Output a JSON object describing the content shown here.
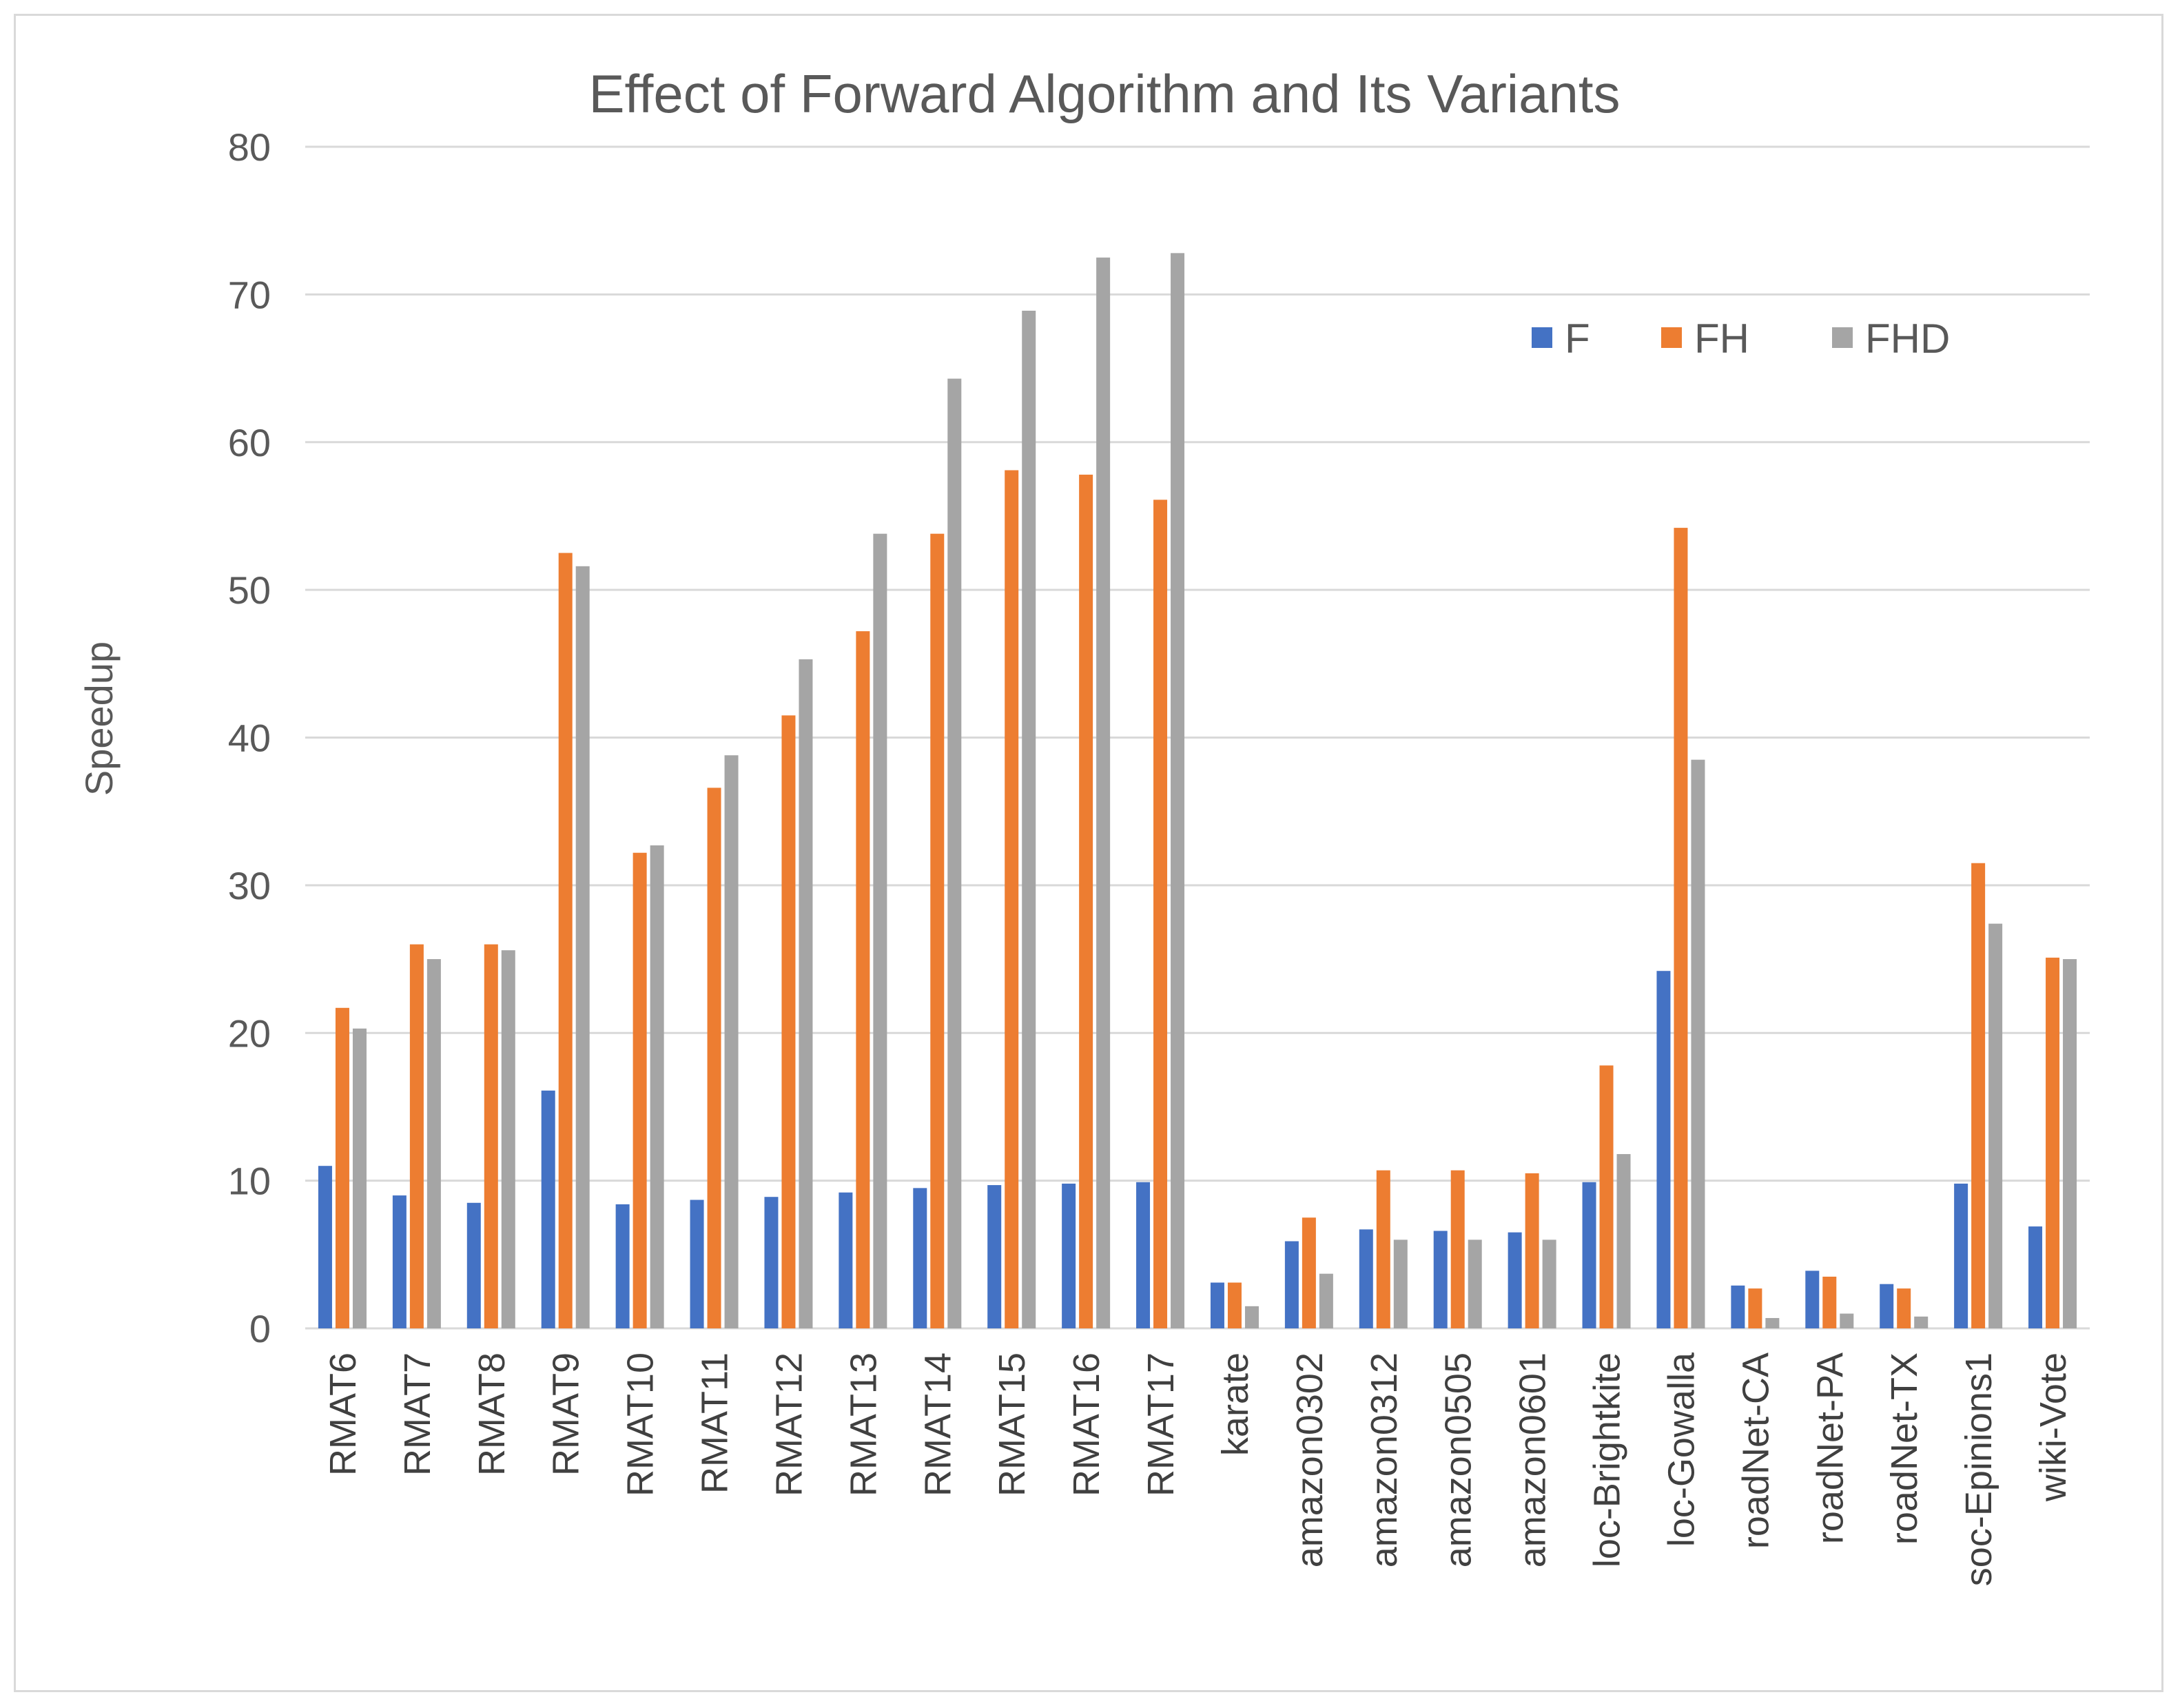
{
  "chart_data": {
    "type": "bar",
    "title": "Effect of Forward Algorithm and Its Variants",
    "xlabel": "",
    "ylabel": "Speedup",
    "ylim": [
      0,
      80
    ],
    "yticks": [
      0,
      10,
      20,
      30,
      40,
      50,
      60,
      70,
      80
    ],
    "grid": true,
    "legend_position": "top-right",
    "categories": [
      "RMAT6",
      "RMAT7",
      "RMAT8",
      "RMAT9",
      "RMAT10",
      "RMAT11",
      "RMAT12",
      "RMAT13",
      "RMAT14",
      "RMAT15",
      "RMAT16",
      "RMAT17",
      "karate",
      "amazon0302",
      "amazon0312",
      "amazon0505",
      "amazon0601",
      "loc-Brightkite",
      "loc-Gowalla",
      "roadNet-CA",
      "roadNet-PA",
      "roadNet-TX",
      "soc-Epinions1",
      "wiki-Vote"
    ],
    "series": [
      {
        "name": "F",
        "color": "#4472c4",
        "values": [
          11.0,
          9.0,
          8.5,
          16.1,
          8.4,
          8.7,
          8.9,
          9.2,
          9.5,
          9.7,
          9.8,
          9.9,
          3.1,
          5.9,
          6.7,
          6.6,
          6.5,
          9.9,
          24.2,
          2.9,
          3.9,
          3.0,
          9.8,
          6.9
        ]
      },
      {
        "name": "FH",
        "color": "#ed7d31",
        "values": [
          21.7,
          26.0,
          26.0,
          52.5,
          32.2,
          36.6,
          41.5,
          47.2,
          53.8,
          58.1,
          57.8,
          56.1,
          3.1,
          7.5,
          10.7,
          10.7,
          10.5,
          17.8,
          54.2,
          2.7,
          3.5,
          2.7,
          31.5,
          25.1
        ]
      },
      {
        "name": "FHD",
        "color": "#a5a5a5",
        "values": [
          20.3,
          25.0,
          25.6,
          51.6,
          32.7,
          38.8,
          45.3,
          53.8,
          64.3,
          68.9,
          72.5,
          72.8,
          1.5,
          3.7,
          6.0,
          6.0,
          6.0,
          11.8,
          38.5,
          0.7,
          1.0,
          0.8,
          27.4,
          25.0
        ]
      }
    ]
  }
}
